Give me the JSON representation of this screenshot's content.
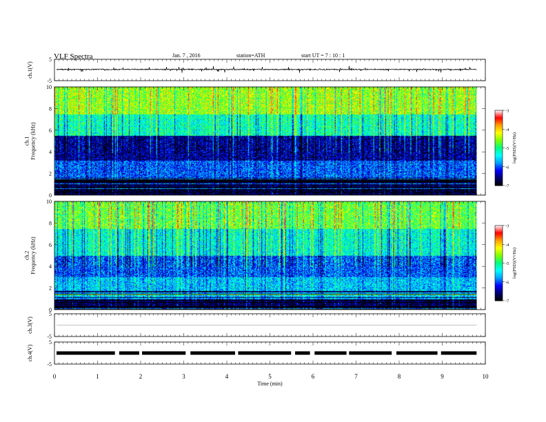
{
  "header": {
    "title": "VLF  Spectra",
    "date": "Jan.  7  , 2016",
    "station": "station=ATH",
    "start": "start  UT  =    7  : 10 : 1"
  },
  "colors": {
    "spectrum": [
      "#000000",
      "#00006e",
      "#0000ff",
      "#00a0ff",
      "#00ffff",
      "#00ff80",
      "#80ff00",
      "#ffff00",
      "#ffa000",
      "#ff0000",
      "#ffffff"
    ],
    "ink": "#000000"
  },
  "chart_data": [
    {
      "type": "line",
      "panel": "ch1-waveform",
      "ylabel": "ch.1(V)",
      "ylim": [
        -5,
        5
      ],
      "yticks": [
        "5",
        "-5"
      ],
      "x_range_min": [
        0,
        9.8
      ],
      "series": [
        {
          "values_approx": "noisy trace centred near 0.2 V with spikes to about ±1.6 V"
        }
      ]
    },
    {
      "type": "heatmap",
      "panel": "ch1-spectrogram",
      "ylabel": "ch.1\nFrequency  (kHz)",
      "ylim": [
        0,
        10
      ],
      "yticks": [
        "0",
        "2",
        "4",
        "6",
        "8",
        "10"
      ],
      "x_range_min": [
        0,
        9.8
      ],
      "colorbar": {
        "label": "log(PSD)(V²/Hz)",
        "range": [
          -7,
          -3
        ],
        "ticks": [
          "-3",
          "-4",
          "-5",
          "-6",
          "-7"
        ]
      },
      "bands": [
        {
          "from_khz": 0,
          "to_khz": 1.6,
          "log_psd": -6.8,
          "note": "dark blue/black with horizontal lines"
        },
        {
          "from_khz": 1.6,
          "to_khz": 3.2,
          "log_psd": -6.0,
          "note": "cyan"
        },
        {
          "from_khz": 3.2,
          "to_khz": 5.5,
          "log_psd": -6.5,
          "note": "blue-cyan with dark striations"
        },
        {
          "from_khz": 5.5,
          "to_khz": 7.5,
          "log_psd": -5.2,
          "note": "green"
        },
        {
          "from_khz": 7.5,
          "to_khz": 10,
          "log_psd": -4.5,
          "note": "yellow-orange with red bursts"
        }
      ]
    },
    {
      "type": "heatmap",
      "panel": "ch2-spectrogram",
      "ylabel": "ch.2\nFrequency  (kHz)",
      "ylim": [
        0,
        10
      ],
      "yticks": [
        "0",
        "2",
        "4",
        "6",
        "8",
        "10"
      ],
      "x_range_min": [
        0,
        9.8
      ],
      "colorbar": {
        "label": "log(PSD)(V²/Hz)",
        "range": [
          -7,
          -3
        ],
        "ticks": [
          "-3",
          "-4",
          "-5",
          "-6",
          "-7"
        ]
      },
      "bands": [
        {
          "from_khz": 0,
          "to_khz": 1.2,
          "log_psd": -6.7,
          "note": "dark blue/black with horizontal lines"
        },
        {
          "from_khz": 1.2,
          "to_khz": 3.0,
          "log_psd": -5.6,
          "note": "green-cyan with yellow lines"
        },
        {
          "from_khz": 3.0,
          "to_khz": 5.0,
          "log_psd": -6.0,
          "note": "cyan/blue"
        },
        {
          "from_khz": 5.0,
          "to_khz": 7.5,
          "log_psd": -5.3,
          "note": "green"
        },
        {
          "from_khz": 7.5,
          "to_khz": 10,
          "log_psd": -4.7,
          "note": "yellow with red bursts"
        }
      ]
    },
    {
      "type": "line",
      "panel": "ch3-waveform",
      "ylabel": "ch.3(V)",
      "ylim": [
        -5,
        5
      ],
      "yticks": [
        "5",
        "-5"
      ],
      "series": [
        {
          "values_approx": "flat near 0 V (empty)"
        }
      ]
    },
    {
      "type": "line",
      "panel": "ch4-waveform",
      "ylabel": "ch.4(V)",
      "ylim": [
        -5,
        5
      ],
      "yticks": [
        "5",
        "-5"
      ],
      "x_range_min": [
        0,
        9.8
      ],
      "series": [
        {
          "values_approx": "thick band at about 0 V with short gaps"
        }
      ]
    }
  ],
  "xaxis": {
    "label": "Time  (min)",
    "ticks": [
      "0",
      "1",
      "2",
      "3",
      "4",
      "5",
      "6",
      "7",
      "8",
      "9",
      "10"
    ],
    "range": [
      0,
      10
    ]
  }
}
